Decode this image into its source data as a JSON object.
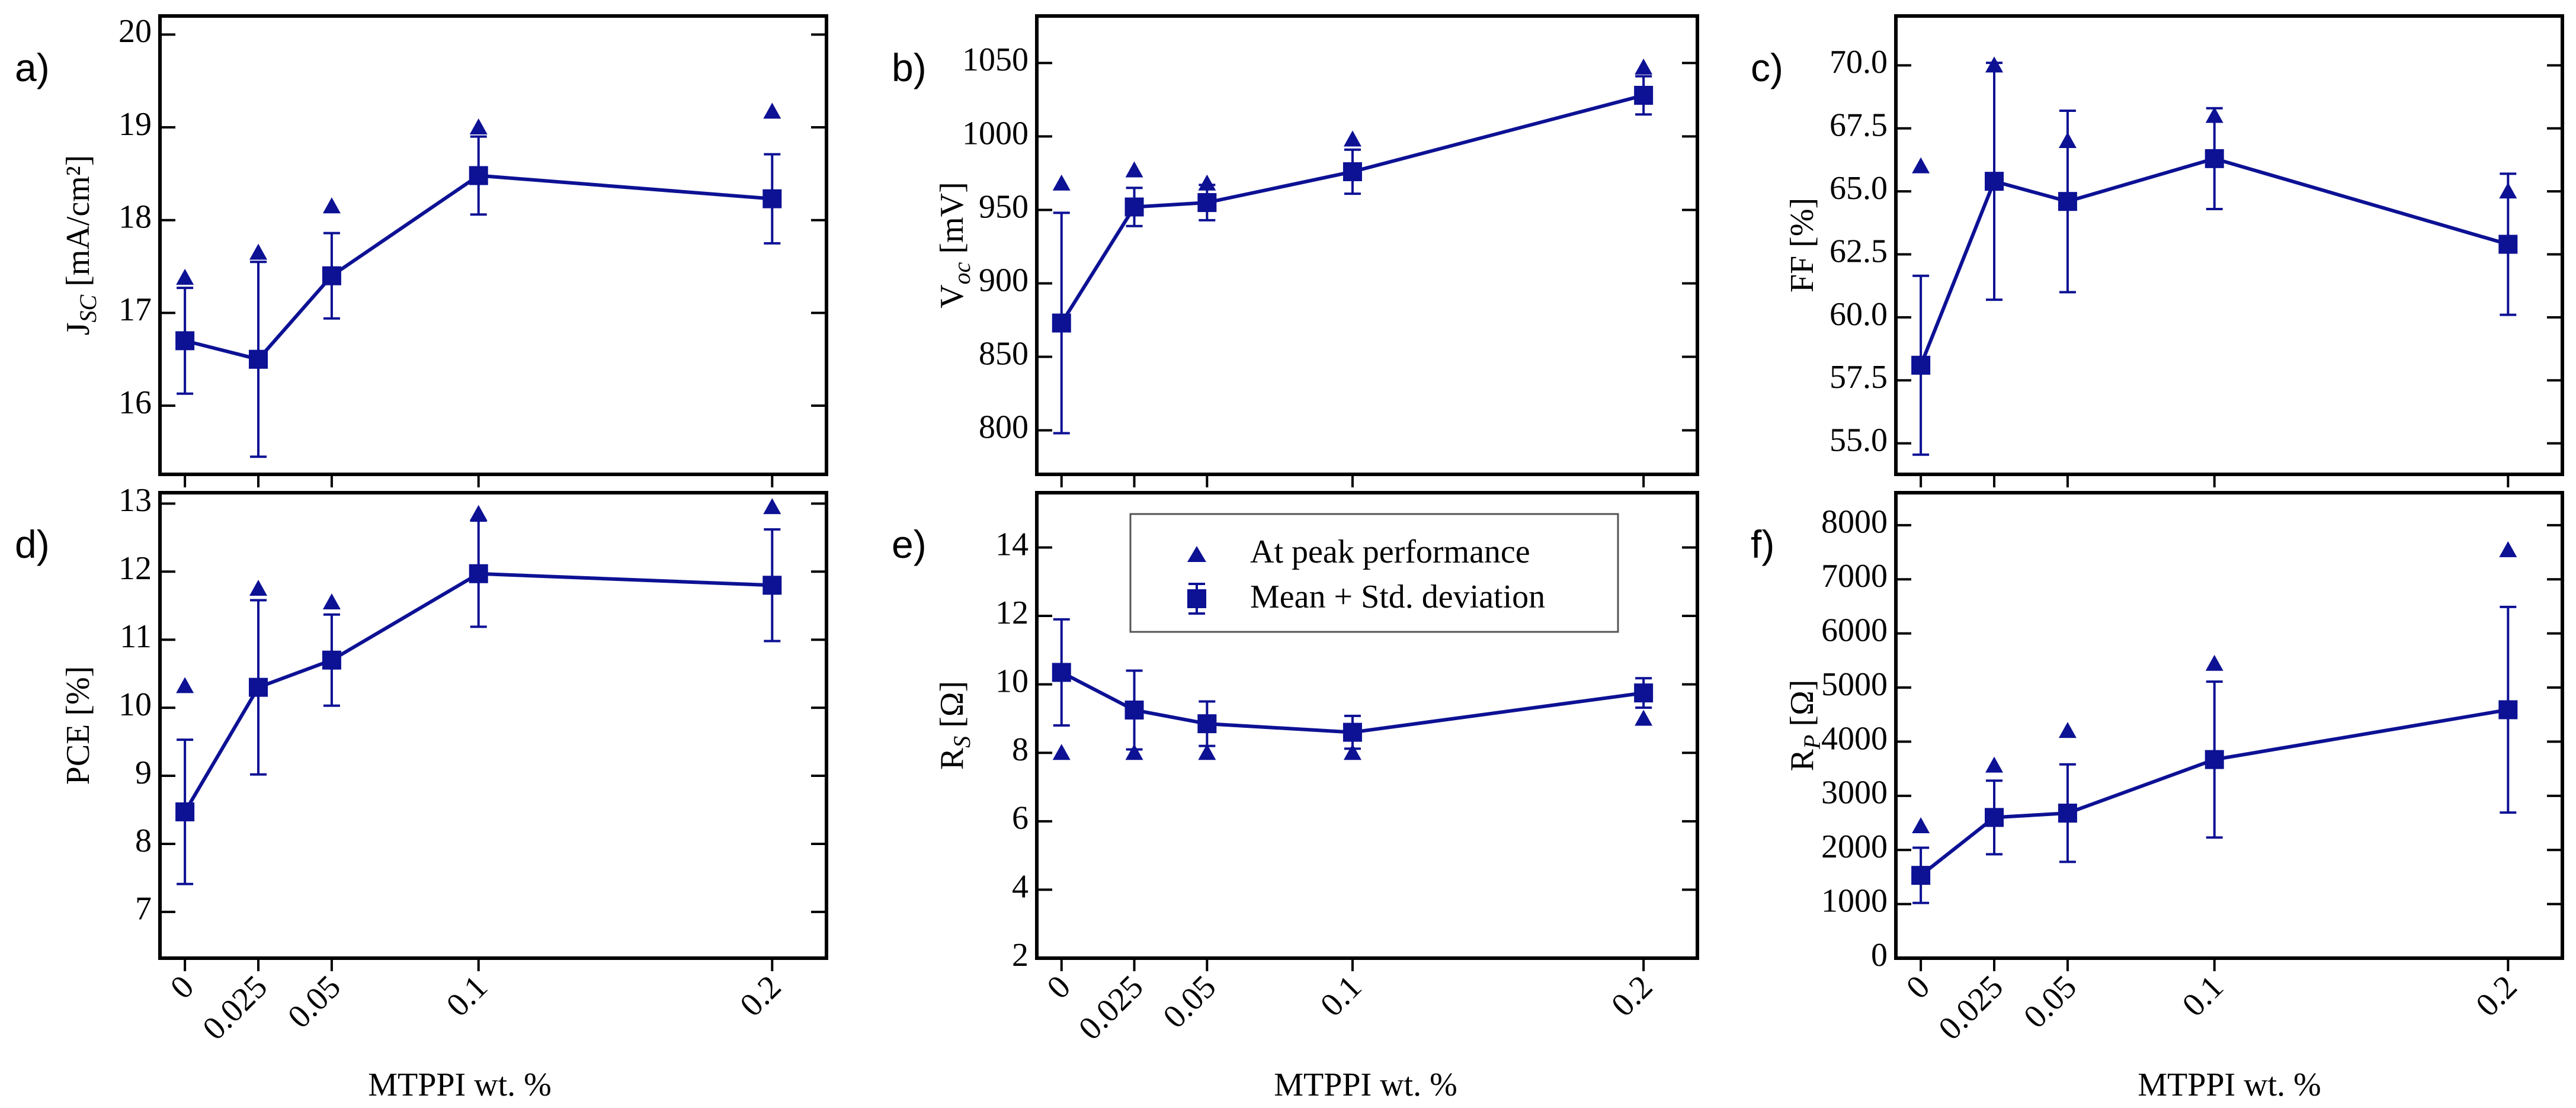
{
  "colors": {
    "series": "#0d1194",
    "axis": "#000000",
    "background": "#ffffff"
  },
  "legend": {
    "peak_label": "At peak performance",
    "mean_label": "Mean + Std. deviation"
  },
  "xlabel": "MTPPI wt. %",
  "chart_data": [
    {
      "id": "a",
      "panel_label": "a)",
      "type": "line",
      "ylabel": {
        "main": "J",
        "sub": "SC",
        "tail": " [mA/cm²]"
      },
      "x": [
        0,
        0.025,
        0.05,
        0.1,
        0.2
      ],
      "xlim": [
        -0.0085,
        0.2185
      ],
      "xticks": [
        0,
        0.025,
        0.05,
        0.1,
        0.2
      ],
      "xticklabels": [
        "0",
        "0.025",
        "0.05",
        "0.1",
        "0.2"
      ],
      "show_xticklabels": false,
      "ylim": [
        15.26,
        20.2
      ],
      "yticks": [
        16,
        17,
        18,
        19,
        20
      ],
      "yticklabels": [
        "16",
        "17",
        "18",
        "19",
        "20"
      ],
      "mean": [
        16.7,
        16.5,
        17.4,
        18.48,
        18.23
      ],
      "std": [
        0.57,
        1.05,
        0.46,
        0.42,
        0.48
      ],
      "peak": [
        17.38,
        17.65,
        18.15,
        19.0,
        19.17
      ]
    },
    {
      "id": "b",
      "panel_label": "b)",
      "type": "line",
      "ylabel": {
        "main": "V",
        "sub": "oc",
        "tail": " [mV]"
      },
      "x": [
        0,
        0.025,
        0.05,
        0.1,
        0.2
      ],
      "xlim": [
        -0.0085,
        0.2185
      ],
      "xticks": [
        0,
        0.025,
        0.05,
        0.1,
        0.2
      ],
      "xticklabels": [
        "0",
        "0.025",
        "0.05",
        "0.1",
        "0.2"
      ],
      "show_xticklabels": false,
      "ylim": [
        770,
        1082
      ],
      "yticks": [
        800,
        850,
        900,
        950,
        1000,
        1050
      ],
      "yticklabels": [
        "800",
        "850",
        "900",
        "950",
        "1000",
        "1050"
      ],
      "mean": [
        873,
        952,
        955,
        976,
        1028
      ],
      "std": [
        75,
        13,
        12,
        15,
        13
      ],
      "peak": [
        968,
        977,
        968,
        998,
        1047
      ]
    },
    {
      "id": "c",
      "panel_label": "c)",
      "type": "line",
      "ylabel": {
        "main": "FF",
        "sub": "",
        "tail": " [%]"
      },
      "x": [
        0,
        0.025,
        0.05,
        0.1,
        0.2
      ],
      "xlim": [
        -0.0085,
        0.2185
      ],
      "xticks": [
        0,
        0.025,
        0.05,
        0.1,
        0.2
      ],
      "xticklabels": [
        "0",
        "0.025",
        "0.05",
        "0.1",
        "0.2"
      ],
      "show_xticklabels": false,
      "ylim": [
        53.77,
        71.96
      ],
      "yticks": [
        55.0,
        57.5,
        60.0,
        62.5,
        65.0,
        67.5,
        70.0
      ],
      "yticklabels": [
        "55.0",
        "57.5",
        "60.0",
        "62.5",
        "65.0",
        "67.5",
        "70.0"
      ],
      "mean": [
        58.1,
        65.4,
        64.6,
        66.3,
        62.9
      ],
      "std": [
        3.55,
        4.7,
        3.6,
        2.0,
        2.8
      ],
      "peak": [
        66.0,
        70.0,
        67.0,
        68.0,
        65.0
      ]
    },
    {
      "id": "d",
      "panel_label": "d)",
      "type": "line",
      "ylabel": {
        "main": "PCE",
        "sub": "",
        "tail": " [%]"
      },
      "x": [
        0,
        0.025,
        0.05,
        0.1,
        0.2
      ],
      "xlim": [
        -0.0085,
        0.2185
      ],
      "xticks": [
        0,
        0.025,
        0.05,
        0.1,
        0.2
      ],
      "xticklabels": [
        "0",
        "0.025",
        "0.05",
        "0.1",
        "0.2"
      ],
      "show_xticklabels": true,
      "ylim": [
        6.32,
        13.16
      ],
      "yticks": [
        7,
        8,
        9,
        10,
        11,
        12,
        13
      ],
      "yticklabels": [
        "7",
        "8",
        "9",
        "10",
        "11",
        "12",
        "13"
      ],
      "mean": [
        8.47,
        10.3,
        10.7,
        11.97,
        11.8
      ],
      "std": [
        1.06,
        1.28,
        0.67,
        0.78,
        0.82
      ],
      "peak": [
        10.32,
        11.75,
        11.55,
        12.85,
        12.95
      ]
    },
    {
      "id": "e",
      "panel_label": "e)",
      "type": "line",
      "ylabel": {
        "main": "R",
        "sub": "S",
        "tail": " [Ω]"
      },
      "x": [
        0,
        0.025,
        0.05,
        0.1,
        0.2
      ],
      "xlim": [
        -0.0085,
        0.2185
      ],
      "xticks": [
        0,
        0.025,
        0.05,
        0.1,
        0.2
      ],
      "xticklabels": [
        "0",
        "0.025",
        "0.05",
        "0.1",
        "0.2"
      ],
      "show_xticklabels": true,
      "ylim": [
        2.0,
        15.6
      ],
      "yticks": [
        2,
        4,
        6,
        8,
        10,
        12,
        14
      ],
      "yticklabels": [
        "2",
        "4",
        "6",
        "8",
        "10",
        "12",
        "14"
      ],
      "mean": [
        10.35,
        9.25,
        8.85,
        8.6,
        9.75
      ],
      "std": [
        1.55,
        1.15,
        0.65,
        0.48,
        0.43
      ],
      "peak": [
        8.0,
        8.0,
        8.0,
        8.0,
        9.0
      ],
      "has_legend": true
    },
    {
      "id": "f",
      "panel_label": "f)",
      "type": "line",
      "ylabel": {
        "main": "R",
        "sub": "P",
        "tail": " [Ω]"
      },
      "x": [
        0,
        0.025,
        0.05,
        0.1,
        0.2
      ],
      "xlim": [
        -0.0085,
        0.2185
      ],
      "xticks": [
        0,
        0.025,
        0.05,
        0.1,
        0.2
      ],
      "xticklabels": [
        "0",
        "0.025",
        "0.05",
        "0.1",
        "0.2"
      ],
      "show_xticklabels": true,
      "ylim": [
        0,
        8600
      ],
      "yticks": [
        0,
        1000,
        2000,
        3000,
        4000,
        5000,
        6000,
        7000,
        8000
      ],
      "yticklabels": [
        "0",
        "1000",
        "2000",
        "3000",
        "4000",
        "5000",
        "6000",
        "7000",
        "8000"
      ],
      "mean": [
        1530,
        2600,
        2680,
        3670,
        4590
      ],
      "std": [
        510,
        680,
        900,
        1440,
        1900
      ],
      "peak": [
        2440,
        3560,
        4200,
        5440,
        7540
      ]
    }
  ]
}
